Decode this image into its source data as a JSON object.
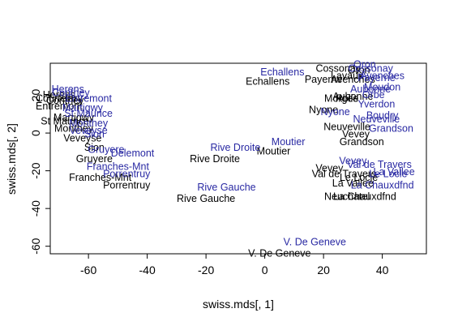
{
  "chart_data": {
    "type": "scatter",
    "xlabel": "swiss.mds[, 1]",
    "ylabel": "swiss.mds[, 2]",
    "xlim": [
      -73,
      55
    ],
    "ylim": [
      -64,
      37
    ],
    "xticks": [
      -60,
      -40,
      -20,
      0,
      20,
      40
    ],
    "yticks": [
      -60,
      -40,
      -20,
      0,
      20
    ],
    "xtick_labels": [
      "-60",
      "-40",
      "-20",
      "0",
      "20",
      "40"
    ],
    "ytick_labels": [
      "-60",
      "-40",
      "-20",
      "0",
      "20"
    ],
    "grid": false,
    "colors": {
      "black": "#000000",
      "blue": "#2929a3"
    },
    "series": [
      {
        "color": "black",
        "points": [
          {
            "label": "Courtelary",
            "x": -70,
            "y": 18
          },
          {
            "label": "Herens",
            "x": -70,
            "y": 20
          },
          {
            "label": "Conthey",
            "x": -68,
            "y": 17
          },
          {
            "label": "Entremont",
            "x": -70,
            "y": 14
          },
          {
            "label": "Martigwy",
            "x": -65,
            "y": 8
          },
          {
            "label": "St Maurice",
            "x": -68,
            "y": 6
          },
          {
            "label": "Monthey",
            "x": -65,
            "y": 2
          },
          {
            "label": "Veveyse",
            "x": -62,
            "y": -3
          },
          {
            "label": "Sion",
            "x": -58,
            "y": -8
          },
          {
            "label": "Gruyere",
            "x": -58,
            "y": -14
          },
          {
            "label": "Franches-Mnt",
            "x": -56,
            "y": -24
          },
          {
            "label": "Porrentruy",
            "x": -47,
            "y": -28
          },
          {
            "label": "Rive Droite",
            "x": -17,
            "y": -14
          },
          {
            "label": "Moutier",
            "x": 3,
            "y": -10
          },
          {
            "label": "Rive Gauche",
            "x": -20,
            "y": -35
          },
          {
            "label": "V. De Geneve",
            "x": 5,
            "y": -64
          },
          {
            "label": "Echallens",
            "x": 1,
            "y": 27
          },
          {
            "label": "Payerne",
            "x": 20,
            "y": 28
          },
          {
            "label": "Avenches",
            "x": 30,
            "y": 28
          },
          {
            "label": "Lavaux",
            "x": 28,
            "y": 30
          },
          {
            "label": "Oron",
            "x": 32,
            "y": 33
          },
          {
            "label": "Cossonay",
            "x": 25,
            "y": 34
          },
          {
            "label": "Morges",
            "x": 26,
            "y": 18
          },
          {
            "label": "Rolle",
            "x": 28,
            "y": 18
          },
          {
            "label": "Aubonne",
            "x": 30,
            "y": 19
          },
          {
            "label": "Nyone",
            "x": 20,
            "y": 12
          },
          {
            "label": "Neuveville",
            "x": 28,
            "y": 3
          },
          {
            "label": "Vevey",
            "x": 31,
            "y": -1
          },
          {
            "label": "Grandson",
            "x": 33,
            "y": -5
          },
          {
            "label": "Val de Travers",
            "x": 27,
            "y": -22
          },
          {
            "label": "Vevey",
            "x": 22,
            "y": -19
          },
          {
            "label": "La Vallee",
            "x": 30,
            "y": -27
          },
          {
            "label": "Le Locle",
            "x": 32,
            "y": -24
          },
          {
            "label": "La Chauxdfnd",
            "x": 34,
            "y": -34
          },
          {
            "label": "Neuchatel",
            "x": 28,
            "y": -34
          }
        ]
      },
      {
        "color": "blue",
        "points": [
          {
            "label": "Herens",
            "x": -67,
            "y": 23
          },
          {
            "label": "Conthey",
            "x": -66,
            "y": 21
          },
          {
            "label": "Entremont",
            "x": -60,
            "y": 18
          },
          {
            "label": "Martigwy",
            "x": -62,
            "y": 13
          },
          {
            "label": "St Maurice",
            "x": -60,
            "y": 10
          },
          {
            "label": "Monthey",
            "x": -60,
            "y": 5
          },
          {
            "label": "Veveyse",
            "x": -60,
            "y": 1
          },
          {
            "label": "Sion",
            "x": -58,
            "y": -1
          },
          {
            "label": "Gruyere",
            "x": -54,
            "y": -9
          },
          {
            "label": "Delemont",
            "x": -45,
            "y": -11
          },
          {
            "label": "Franches-Mnt",
            "x": -50,
            "y": -18
          },
          {
            "label": "Porrentruy",
            "x": -47,
            "y": -22
          },
          {
            "label": "Rive Droite",
            "x": -10,
            "y": -8
          },
          {
            "label": "Moutier",
            "x": 8,
            "y": -5
          },
          {
            "label": "Rive Gauche",
            "x": -13,
            "y": -29
          },
          {
            "label": "V. De Geneve",
            "x": 17,
            "y": -58
          },
          {
            "label": "Echallens",
            "x": 6,
            "y": 32
          },
          {
            "label": "Oron",
            "x": 34,
            "y": 36
          },
          {
            "label": "Cossonay",
            "x": 36,
            "y": 34
          },
          {
            "label": "Avenches",
            "x": 40,
            "y": 30
          },
          {
            "label": "Payerne",
            "x": 38,
            "y": 29
          },
          {
            "label": "Moudon",
            "x": 40,
            "y": 24
          },
          {
            "label": "Aubonne",
            "x": 36,
            "y": 23
          },
          {
            "label": "Orbe",
            "x": 37,
            "y": 20
          },
          {
            "label": "Yverdon",
            "x": 38,
            "y": 15
          },
          {
            "label": "Nyone",
            "x": 24,
            "y": 11
          },
          {
            "label": "Neuveville",
            "x": 38,
            "y": 7
          },
          {
            "label": "Boudry",
            "x": 40,
            "y": 9
          },
          {
            "label": "Grandson",
            "x": 43,
            "y": 2
          },
          {
            "label": "Vevey",
            "x": 30,
            "y": -15
          },
          {
            "label": "Val de Travers",
            "x": 39,
            "y": -17
          },
          {
            "label": "La Vallee",
            "x": 44,
            "y": -21
          },
          {
            "label": "Le Locle",
            "x": 42,
            "y": -22
          },
          {
            "label": "La Chauxdfnd",
            "x": 40,
            "y": -28
          }
        ]
      }
    ]
  }
}
